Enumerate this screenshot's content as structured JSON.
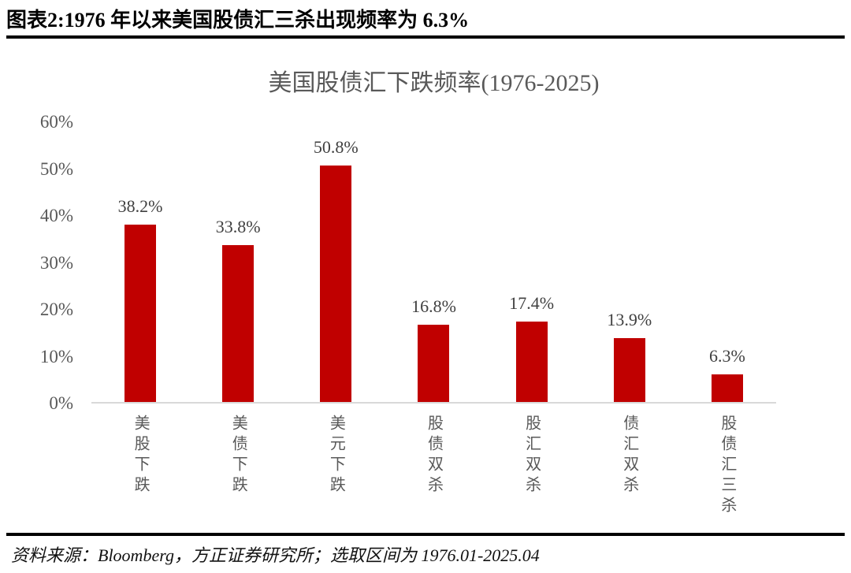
{
  "header": {
    "title": "图表2:1976 年以来美国股债汇三杀出现频率为 6.3%"
  },
  "chart_data": {
    "type": "bar",
    "title": "美国股债汇下跌频率(1976-2025)",
    "categories": [
      "美股下跌",
      "美债下跌",
      "美元下跌",
      "股债双杀",
      "股汇双杀",
      "债汇双杀",
      "股债汇三杀"
    ],
    "values": [
      38.2,
      33.8,
      50.8,
      16.8,
      17.4,
      13.9,
      6.3
    ],
    "value_labels": [
      "38.2%",
      "33.8%",
      "50.8%",
      "16.8%",
      "17.4%",
      "13.9%",
      "6.3%"
    ],
    "y_ticks": [
      "60%",
      "50%",
      "40%",
      "30%",
      "20%",
      "10%",
      "0%"
    ],
    "ylim": [
      0,
      60
    ],
    "xlabel": "",
    "ylabel": "",
    "grid": false,
    "legend": null,
    "bar_color": "#C00000"
  },
  "colors": {
    "bar": "#C00000",
    "axis_line": "#D9D9D9",
    "tick_text": "#595959",
    "chart_title_text": "#595959",
    "value_label_text": "#404040",
    "header_text": "#000000",
    "rule": "#000000"
  },
  "footer": {
    "source": "资料来源：Bloomberg，方正证券研究所；选取区间为 1976.01-2025.04"
  }
}
